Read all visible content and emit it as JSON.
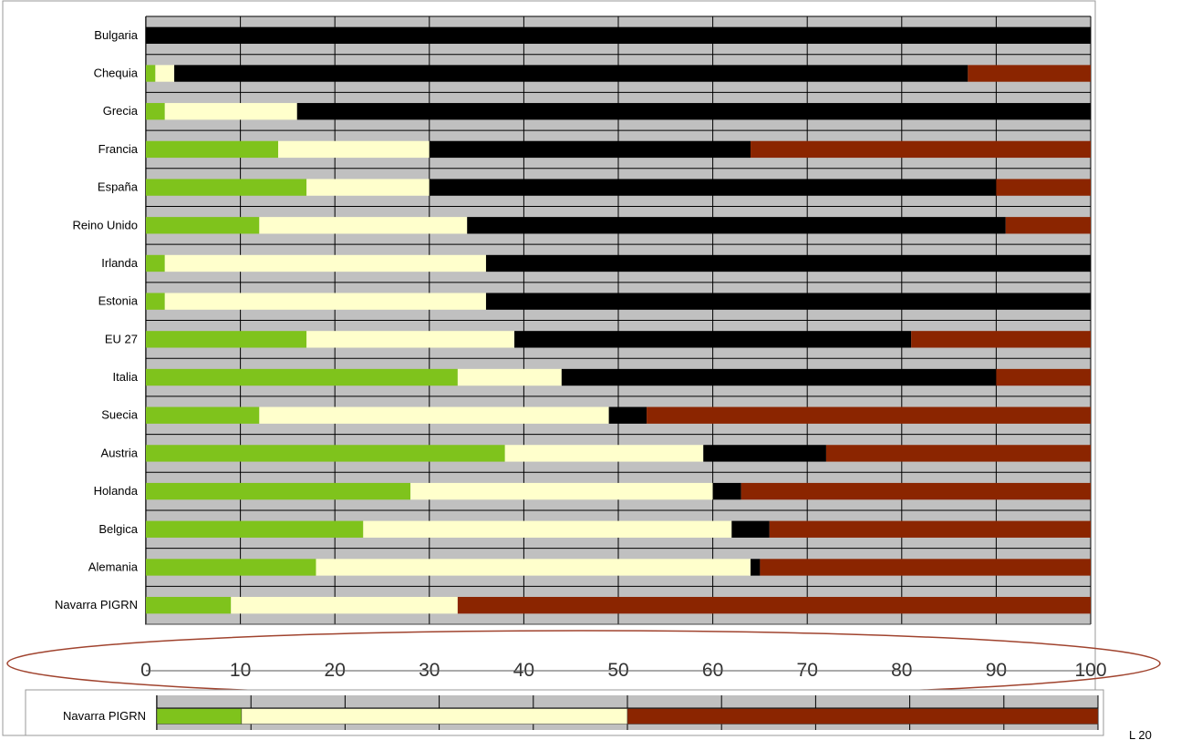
{
  "chart_data": [
    {
      "type": "bar",
      "orientation": "horizontal",
      "stacked": true,
      "title": "",
      "xlabel": "",
      "ylabel": "",
      "xlim": [
        0,
        100
      ],
      "x_ticks": [
        0,
        10,
        20,
        30,
        40,
        50,
        60,
        70,
        80,
        90,
        100
      ],
      "x_tick_labels": [
        "0",
        "10",
        "20",
        "30",
        "40",
        "50",
        "60",
        "70",
        "80",
        "90",
        "100"
      ],
      "grid": true,
      "legend": "none",
      "colors": [
        "#7fc31c",
        "#ffffcc",
        "#000000",
        "#8b2500"
      ],
      "background": "#c0c0c0",
      "categories": [
        "Bulgaria",
        "Chequia",
        "Grecia",
        "Francia",
        "España",
        "Reino Unido",
        "Irlanda",
        "Estonia",
        "EU 27",
        "Italia",
        "Suecia",
        "Austria",
        "Holanda",
        "Belgica",
        "Alemania",
        "Navarra PIGRN"
      ],
      "series": [
        {
          "values": [
            0,
            1,
            2,
            14,
            17,
            12,
            2,
            2,
            17,
            33,
            12,
            38,
            28,
            23,
            18,
            9
          ]
        },
        {
          "values": [
            0,
            2,
            14,
            16,
            13,
            22,
            34,
            34,
            22,
            11,
            37,
            21,
            32,
            39,
            46,
            24
          ]
        },
        {
          "values": [
            100,
            84,
            84,
            34,
            60,
            57,
            64,
            64,
            42,
            46,
            4,
            13,
            3,
            4,
            1,
            0
          ]
        },
        {
          "values": [
            0,
            13,
            0,
            36,
            10,
            9,
            0,
            0,
            19,
            10,
            47,
            28,
            37,
            34,
            35,
            67
          ]
        }
      ]
    },
    {
      "type": "bar",
      "orientation": "horizontal",
      "stacked": true,
      "categories": [
        "Navarra PIGRN"
      ],
      "xlim": [
        0,
        100
      ],
      "series": [
        {
          "values": [
            9
          ]
        },
        {
          "values": [
            41
          ]
        },
        {
          "values": [
            0
          ]
        },
        {
          "values": [
            50
          ]
        }
      ]
    }
  ],
  "trailing_text": "L 20"
}
